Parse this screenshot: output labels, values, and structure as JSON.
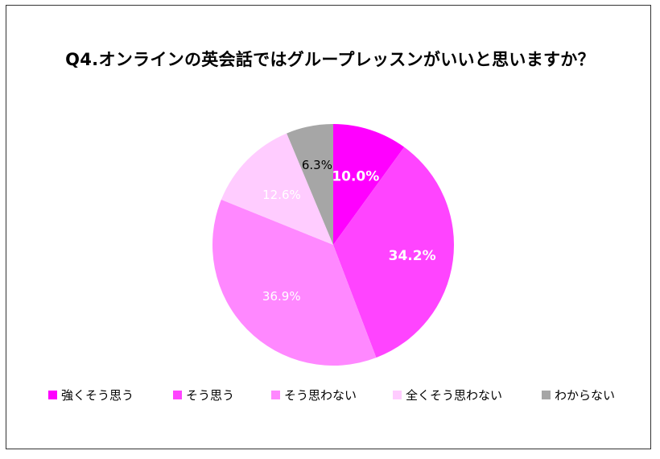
{
  "chart_data": {
    "type": "pie",
    "title": "Q4.オンラインの英会話ではグループレッスンがいいと思いますか？",
    "slices": [
      {
        "label": "強くそう思う",
        "value": 10.0,
        "value_label": "10.0%",
        "color": "#FF00FF",
        "label_color": "#ffffff",
        "label_bold": true
      },
      {
        "label": "そう思う",
        "value": 34.2,
        "value_label": "34.2%",
        "color": "#FF44FF",
        "label_color": "#ffffff",
        "label_bold": true
      },
      {
        "label": "そう思わない",
        "value": 36.9,
        "value_label": "36.9%",
        "color": "#FF88FF",
        "label_color": "#ffffff",
        "label_bold": false
      },
      {
        "label": "全くそう思わない",
        "value": 12.6,
        "value_label": "12.6%",
        "color": "#FFCCFF",
        "label_color": "#ffffff",
        "label_bold": false
      },
      {
        "label": "わからない",
        "value": 6.3,
        "value_label": "6.3%",
        "color": "#A6A6A6",
        "label_color": "#000000",
        "label_bold": false
      }
    ],
    "start_angle": "12 o'clock",
    "direction": "clockwise",
    "legend_position": "bottom"
  }
}
